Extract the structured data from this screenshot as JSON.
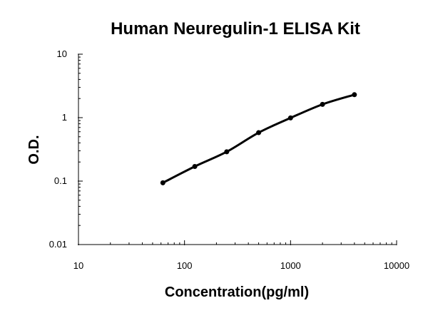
{
  "chart_data": {
    "type": "line",
    "title": "Human Neuregulin-1 ELISA Kit",
    "xlabel": "Concentration(pg/ml)",
    "ylabel": "O.D.",
    "xscale": "log",
    "yscale": "log",
    "xlim": [
      10,
      10000
    ],
    "ylim": [
      0.01,
      10
    ],
    "x_tick_labels": [
      "10",
      "100",
      "1000",
      "10000"
    ],
    "y_tick_labels": [
      "0.01",
      "0.1",
      "1",
      "10"
    ],
    "x_ticks": [
      10,
      100,
      1000,
      10000
    ],
    "y_ticks": [
      0.01,
      0.1,
      1,
      10
    ],
    "grid": false,
    "legend": "none",
    "series": [
      {
        "x": [
          62.5,
          125,
          250,
          500,
          1000,
          2000,
          4000
        ],
        "y": [
          0.094,
          0.17,
          0.29,
          0.58,
          0.99,
          1.62,
          2.3
        ],
        "color": "#000000",
        "marker": "circle"
      }
    ]
  }
}
